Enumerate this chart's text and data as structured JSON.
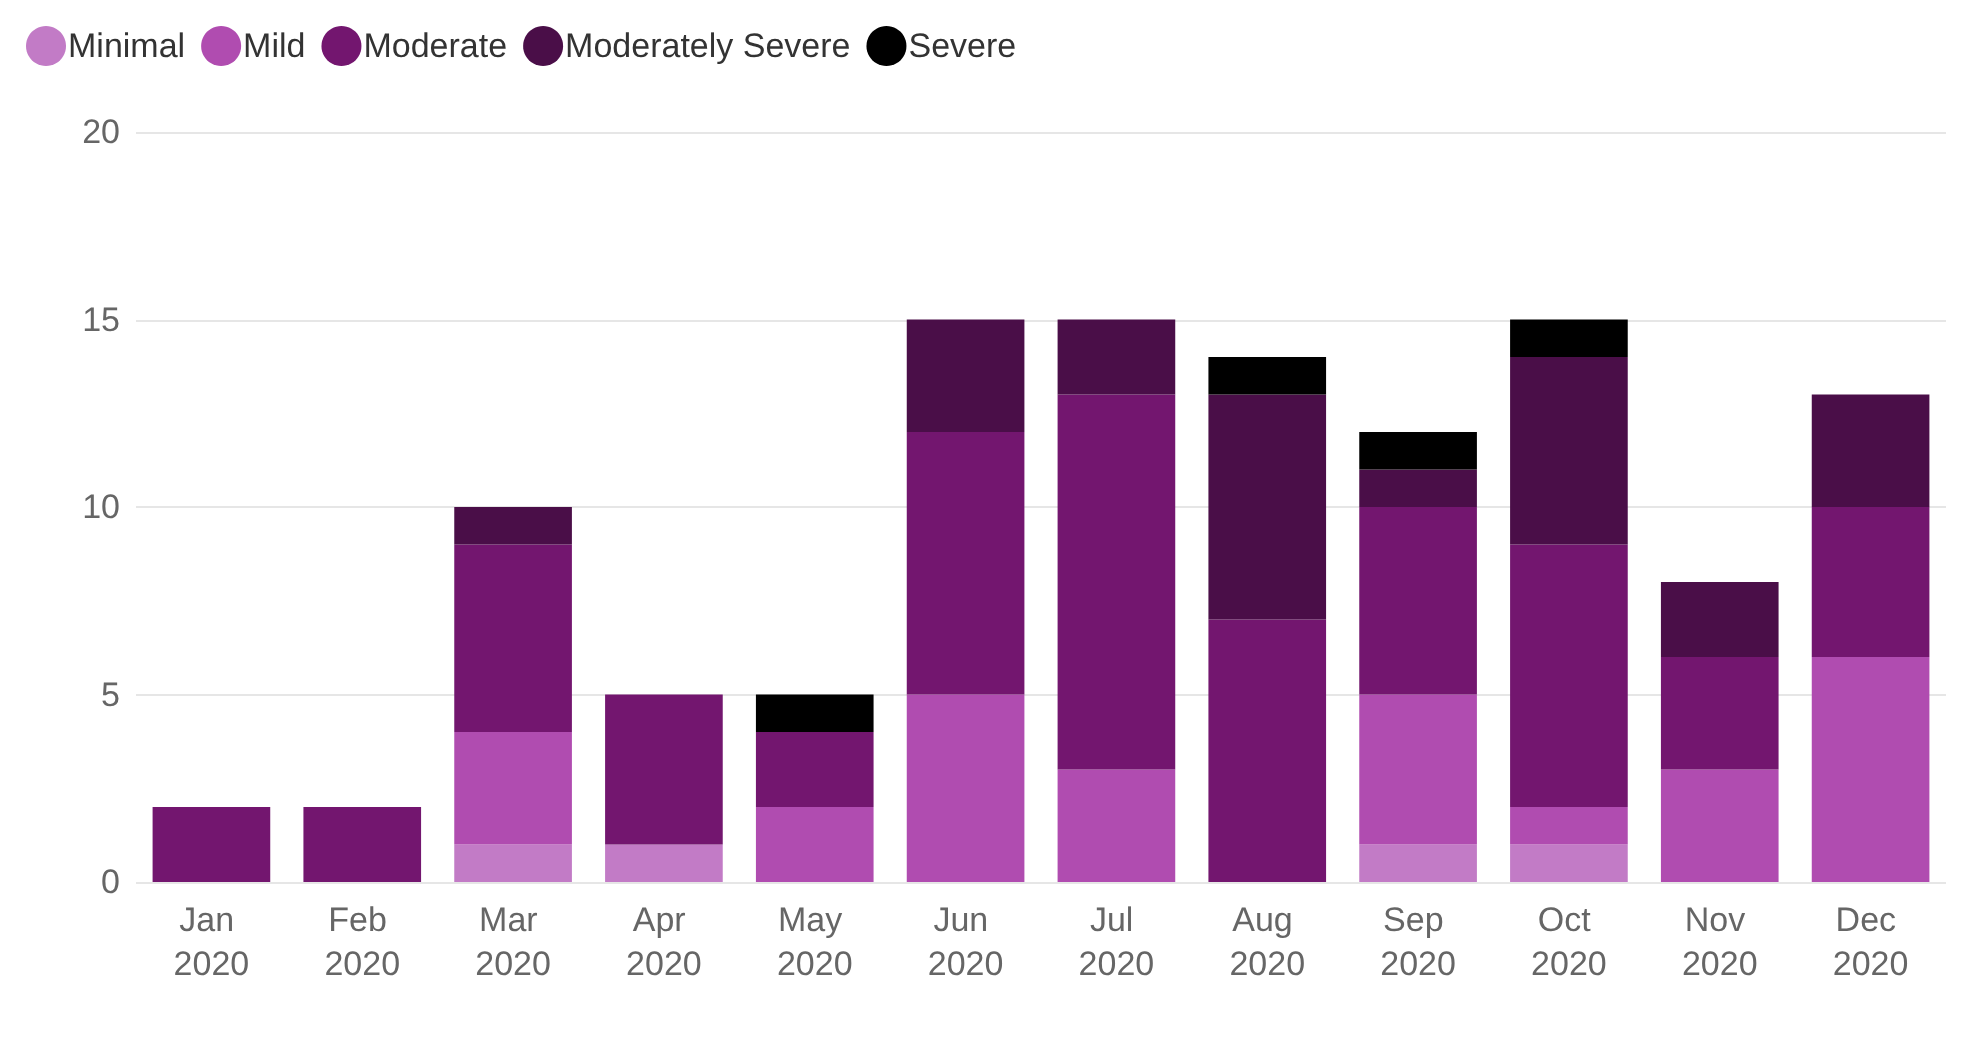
{
  "chart_data": {
    "type": "bar",
    "stacked": true,
    "categories": [
      "Jan 2020",
      "Feb 2020",
      "Mar 2020",
      "Apr 2020",
      "May 2020",
      "Jun 2020",
      "Jul 2020",
      "Aug 2020",
      "Sep 2020",
      "Oct 2020",
      "Nov 2020",
      "Dec 2020"
    ],
    "series": [
      {
        "name": "Minimal",
        "color": "#c27bc6",
        "values": [
          0,
          0,
          1,
          1,
          0,
          0,
          0,
          0,
          1,
          1,
          0,
          0
        ]
      },
      {
        "name": "Mild",
        "color": "#b04cb0",
        "values": [
          0,
          0,
          3,
          0,
          2,
          5,
          3,
          0,
          4,
          1,
          3,
          6
        ]
      },
      {
        "name": "Moderate",
        "color": "#73166f",
        "values": [
          2,
          2,
          5,
          4,
          2,
          7,
          10,
          7,
          5,
          7,
          3,
          4
        ]
      },
      {
        "name": "Moderately Severe",
        "color": "#4a0e48",
        "values": [
          0,
          0,
          1,
          0,
          0,
          3,
          2,
          6,
          1,
          5,
          2,
          3
        ]
      },
      {
        "name": "Severe",
        "color": "#000000",
        "values": [
          0,
          0,
          0,
          0,
          1,
          0,
          0,
          1,
          1,
          1,
          0,
          0
        ]
      }
    ],
    "ylim": [
      0,
      20
    ],
    "yticks": [
      0,
      5,
      10,
      15,
      20
    ],
    "grid": "y",
    "legend": "top left"
  }
}
